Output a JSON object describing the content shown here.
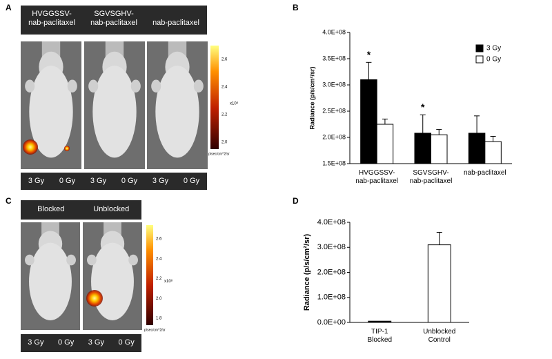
{
  "panel_labels": [
    "A",
    "B",
    "C",
    "D"
  ],
  "panels": [
    {
      "header": [
        "HVGGSSV-\nnab-paclitaxel",
        "SGVSGHV-\nnab-paclitaxel",
        "\nnab-paclitaxel"
      ],
      "footer": [
        "3 Gy",
        "0 Gy",
        "3 Gy",
        "0 Gy",
        "3 Gy",
        "0 Gy"
      ],
      "colorbar": {
        "ticks": [
          "2.6",
          "2.4",
          "2.2",
          "2.0"
        ],
        "exponent": "x10⁸",
        "unit": "p/sec/cm^2/sr"
      }
    },
    {
      "header": [
        "Blocked",
        "Unblocked"
      ],
      "footer": [
        "3 Gy",
        "0 Gy",
        "3 Gy",
        "0 Gy"
      ],
      "colorbar": {
        "ticks": [
          "2.6",
          "2.4",
          "2.2",
          "2.0",
          "1.8"
        ],
        "exponent": "x10⁸",
        "unit": "p/sec/cm^2/sr"
      }
    }
  ],
  "chart_data": [
    {
      "type": "bar",
      "ylabel": "Radiance (p/s/cm²/sr)",
      "categories": [
        "HVGGSSV-\nnab-paclitaxel",
        "SGVSGHV-\nnab-paclitaxel",
        "nab-paclitaxel"
      ],
      "series": [
        {
          "name": "3 Gy",
          "color": "#000000",
          "values": [
            310000000,
            208000000,
            208000000
          ],
          "errors": [
            33000000,
            35000000,
            33000000
          ],
          "value_annotations": [
            "*",
            "*",
            null
          ]
        },
        {
          "name": "0 Gy",
          "color": "#ffffff",
          "values": [
            225000000,
            205000000,
            192000000
          ],
          "errors": [
            10000000,
            10000000,
            10000000
          ]
        }
      ],
      "ylim": [
        150000000,
        400000000
      ],
      "yticks": [
        {
          "value": 150000000,
          "label": "1.5E+08"
        },
        {
          "value": 200000000,
          "label": "2.0E+08"
        },
        {
          "value": 250000000,
          "label": "2.5E+08"
        },
        {
          "value": 300000000,
          "label": "3.0E+08"
        },
        {
          "value": 350000000,
          "label": "3.5E+08"
        },
        {
          "value": 400000000,
          "label": "4.0E+08"
        }
      ],
      "legend": "top-right"
    },
    {
      "type": "bar",
      "ylabel": "Radiance (p/s/cm²/sr)",
      "categories": [
        "TIP-1\nBlocked",
        "Unblocked\nControl"
      ],
      "values": [
        5000000,
        310000000
      ],
      "errors": [
        null,
        50000000
      ],
      "colors": [
        "#000000",
        "#ffffff"
      ],
      "ylim": [
        0,
        400000000
      ],
      "yticks": [
        {
          "value": 0,
          "label": "0.0E+00"
        },
        {
          "value": 100000000,
          "label": "1.0E+08"
        },
        {
          "value": 200000000,
          "label": "2.0E+08"
        },
        {
          "value": 300000000,
          "label": "3.0E+08"
        },
        {
          "value": 400000000,
          "label": "4.0E+08"
        }
      ]
    }
  ]
}
